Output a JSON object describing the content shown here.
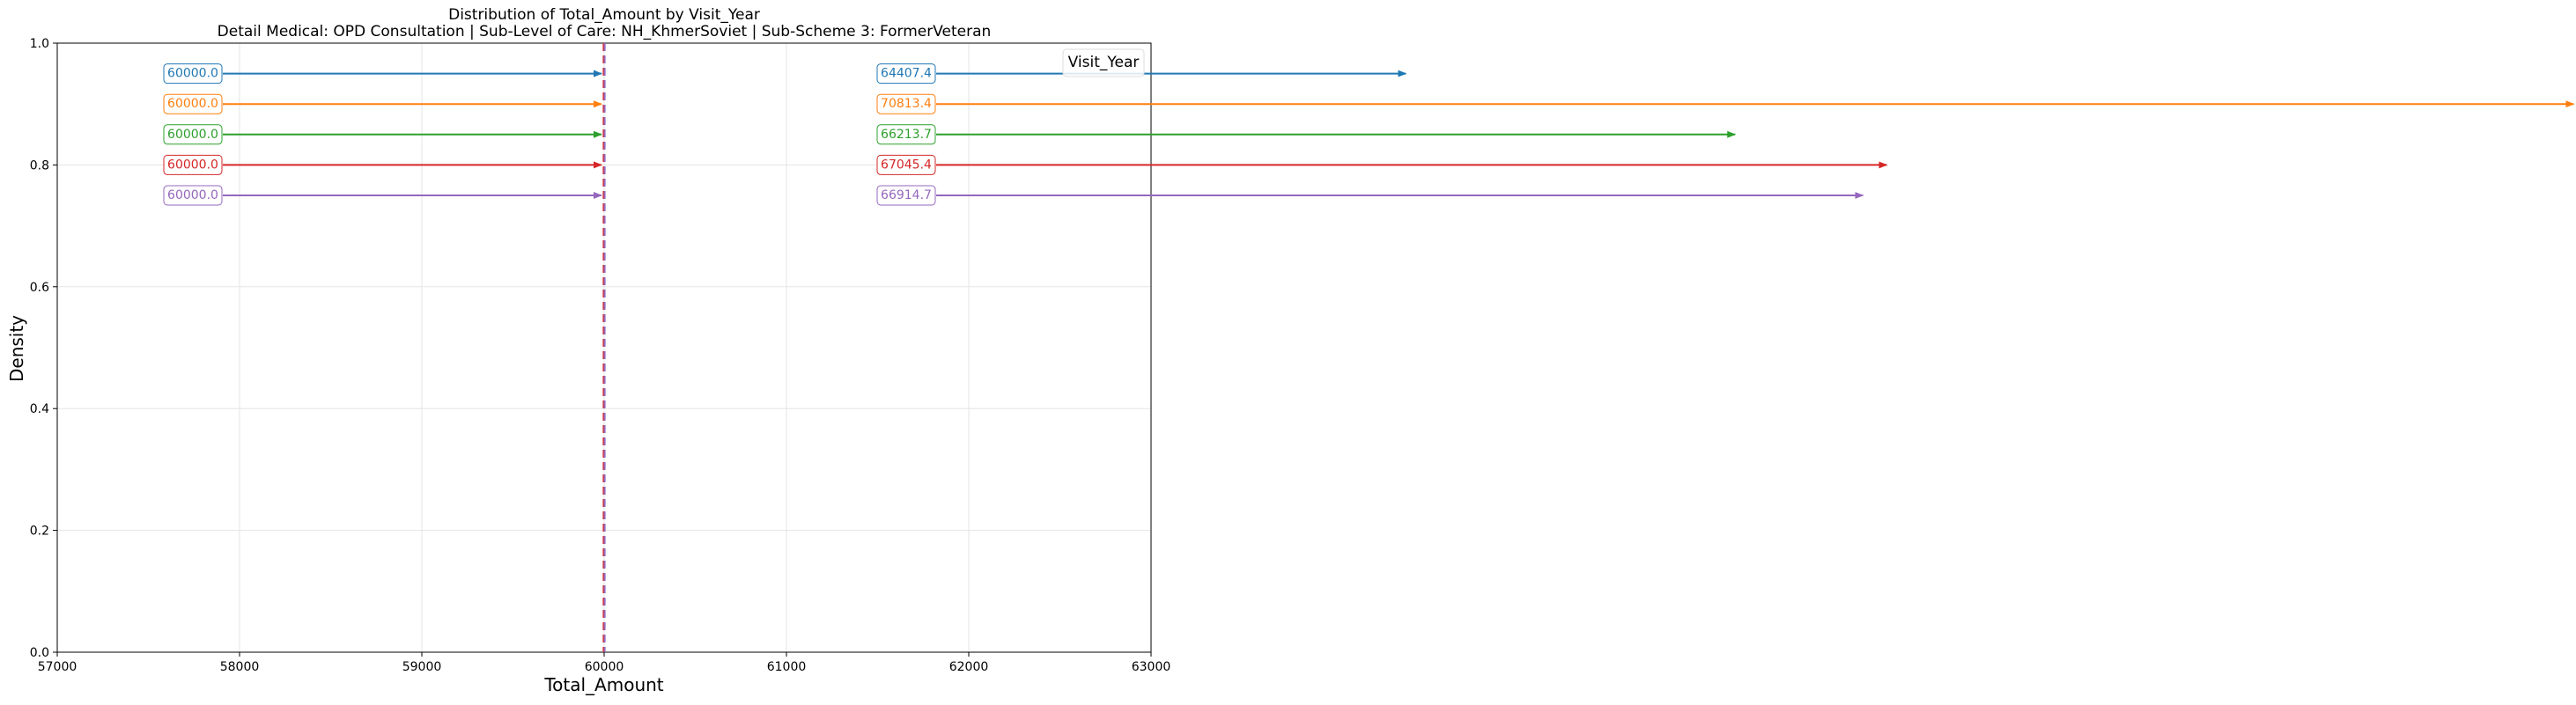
{
  "chart_data": {
    "type": "line",
    "title": "Distribution of Total_Amount by Visit_Year",
    "subtitle": "Detail Medical: OPD Consultation | Sub-Level of Care: NH_KhmerSoviet | Sub-Scheme 3: FormerVeteran",
    "xlabel": "Total_Amount",
    "ylabel": "Density",
    "xlim": [
      57000,
      63000
    ],
    "ylim": [
      0.0,
      1.0
    ],
    "xticks": [
      "57000",
      "58000",
      "59000",
      "60000",
      "61000",
      "62000",
      "63000"
    ],
    "yticks": [
      "0.0",
      "0.2",
      "0.4",
      "0.6",
      "0.8",
      "1.0"
    ],
    "grid": true,
    "legend": {
      "title": "Visit_Year",
      "placement": "upper-right"
    },
    "reference_line": {
      "x": 60000,
      "style": "dashed",
      "colors": [
        "#d62728",
        "#9467bd"
      ]
    },
    "series": [
      {
        "color": "#1f77b4",
        "y": 0.95,
        "left_value": 60000.0,
        "left_label": "60000.0",
        "right_value": 64407.4,
        "right_label": "64407.4"
      },
      {
        "color": "#ff7f0e",
        "y": 0.9,
        "left_value": 60000.0,
        "left_label": "60000.0",
        "right_value": 70813.4,
        "right_label": "70813.4"
      },
      {
        "color": "#2ca02c",
        "y": 0.85,
        "left_value": 60000.0,
        "left_label": "60000.0",
        "right_value": 66213.7,
        "right_label": "66213.7"
      },
      {
        "color": "#d62728",
        "y": 0.8,
        "left_value": 60000.0,
        "left_label": "60000.0",
        "right_value": 67045.4,
        "right_label": "67045.4"
      },
      {
        "color": "#9467bd",
        "y": 0.75,
        "left_value": 60000.0,
        "left_label": "60000.0",
        "right_value": 66914.7,
        "right_label": "66914.7"
      }
    ]
  }
}
